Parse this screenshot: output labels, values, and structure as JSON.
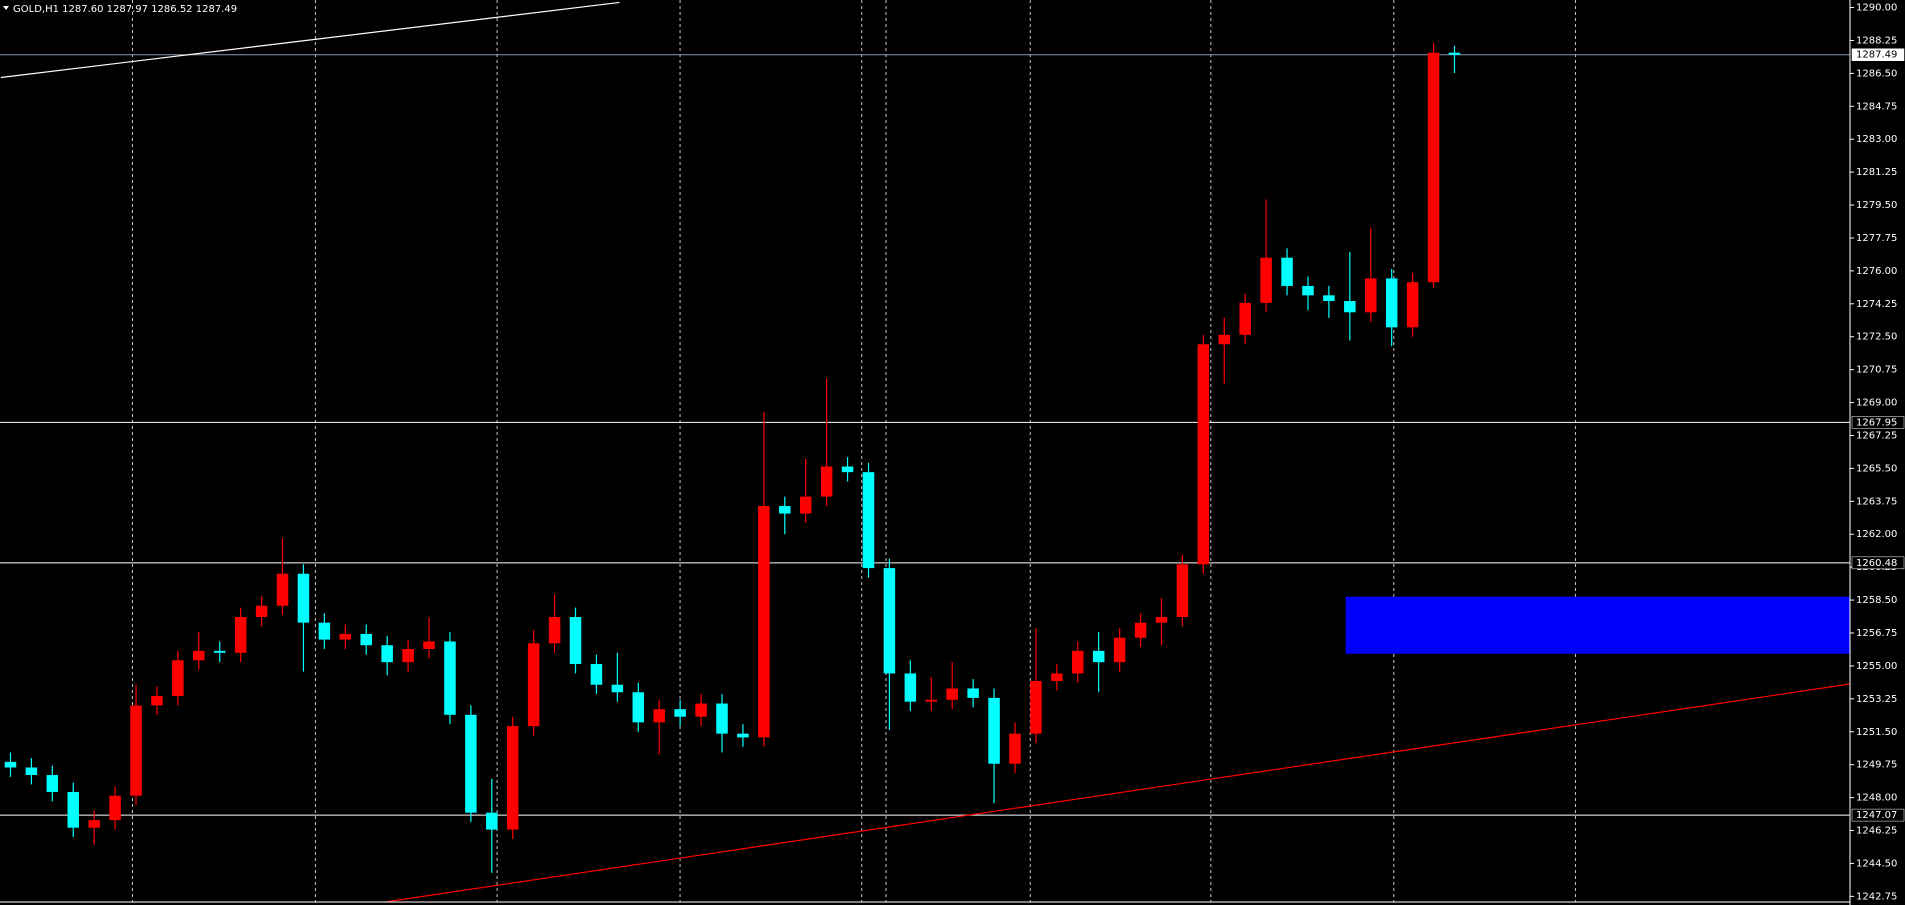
{
  "chart_data": {
    "type": "candlestick",
    "header": "GOLD,H1  1287.60 1287.97 1286.52 1287.49",
    "up_color": "#ff0000",
    "down_color": "#00ffff",
    "open": [
      1249.9,
      1249.6,
      1249.2,
      1248.3,
      1246.4,
      1246.8,
      1248.1,
      1252.9,
      1253.4,
      1255.3,
      1255.8,
      1255.7,
      1257.6,
      1258.2,
      1259.9,
      1257.3,
      1256.4,
      1256.7,
      1256.1,
      1255.2,
      1255.9,
      1256.3,
      1252.4,
      1247.2,
      1246.3,
      1251.8,
      1256.2,
      1257.6,
      1255.1,
      1254.0,
      1253.6,
      1252.0,
      1252.7,
      1252.3,
      1253.0,
      1251.4,
      1251.2,
      1263.5,
      1263.1,
      1264.0,
      1265.6,
      1265.3,
      1260.2,
      1254.6,
      1253.1,
      1253.2,
      1253.8,
      1253.3,
      1249.8,
      1251.4,
      1254.2,
      1254.6,
      1255.8,
      1255.2,
      1256.5,
      1257.3,
      1257.6,
      1260.4,
      1272.1,
      1272.6,
      1274.3,
      1276.7,
      1275.2,
      1274.7,
      1274.4,
      1273.8,
      1275.6,
      1273.0,
      1275.4,
      1287.6
    ],
    "high": [
      1250.4,
      1250.1,
      1249.7,
      1248.8,
      1247.3,
      1248.6,
      1254.0,
      1253.9,
      1255.8,
      1256.8,
      1256.3,
      1258.1,
      1258.7,
      1261.8,
      1260.4,
      1257.8,
      1257.2,
      1257.2,
      1256.6,
      1256.4,
      1257.6,
      1256.8,
      1252.9,
      1249.0,
      1252.3,
      1256.9,
      1258.8,
      1258.1,
      1255.6,
      1255.7,
      1254.1,
      1253.2,
      1253.2,
      1253.5,
      1253.5,
      1251.9,
      1268.5,
      1264.0,
      1266.0,
      1270.3,
      1266.1,
      1265.8,
      1260.7,
      1255.3,
      1254.4,
      1255.2,
      1254.3,
      1253.8,
      1252.0,
      1257.0,
      1255.1,
      1256.3,
      1256.8,
      1257.0,
      1257.8,
      1258.6,
      1260.9,
      1272.6,
      1273.5,
      1274.8,
      1279.8,
      1277.2,
      1275.7,
      1275.2,
      1277.0,
      1278.3,
      1276.1,
      1275.9,
      1288.1,
      1287.97
    ],
    "low": [
      1249.1,
      1248.7,
      1247.8,
      1245.9,
      1245.5,
      1246.3,
      1247.6,
      1252.4,
      1252.9,
      1254.8,
      1255.2,
      1255.2,
      1257.1,
      1257.7,
      1254.7,
      1255.9,
      1255.9,
      1255.6,
      1254.5,
      1254.7,
      1255.4,
      1251.9,
      1246.7,
      1244.0,
      1245.8,
      1251.3,
      1255.7,
      1254.6,
      1253.5,
      1253.1,
      1251.5,
      1250.3,
      1251.8,
      1251.8,
      1250.4,
      1250.7,
      1250.7,
      1262.0,
      1262.6,
      1263.5,
      1264.8,
      1259.7,
      1251.6,
      1252.6,
      1252.6,
      1252.7,
      1252.8,
      1247.7,
      1249.3,
      1250.9,
      1253.7,
      1254.1,
      1253.6,
      1254.7,
      1256.0,
      1256.1,
      1257.1,
      1259.9,
      1270.0,
      1272.1,
      1273.8,
      1274.7,
      1273.9,
      1273.5,
      1272.3,
      1273.3,
      1272.0,
      1272.5,
      1275.1,
      1286.52
    ],
    "close": [
      1249.6,
      1249.2,
      1248.3,
      1246.4,
      1246.8,
      1248.1,
      1252.9,
      1253.4,
      1255.3,
      1255.8,
      1255.7,
      1257.6,
      1258.2,
      1259.9,
      1257.3,
      1256.4,
      1256.7,
      1256.1,
      1255.2,
      1255.9,
      1256.3,
      1252.4,
      1247.2,
      1246.3,
      1251.8,
      1256.2,
      1257.6,
      1255.1,
      1254.0,
      1253.6,
      1252.0,
      1252.7,
      1252.3,
      1253.0,
      1251.4,
      1251.2,
      1263.5,
      1263.1,
      1264.0,
      1265.6,
      1265.3,
      1260.2,
      1254.6,
      1253.1,
      1253.2,
      1253.8,
      1253.3,
      1249.8,
      1251.4,
      1254.2,
      1254.6,
      1255.8,
      1255.2,
      1256.5,
      1257.3,
      1257.6,
      1260.4,
      1272.1,
      1272.6,
      1274.3,
      1276.7,
      1275.2,
      1274.7,
      1274.4,
      1273.8,
      1275.6,
      1273.0,
      1275.4,
      1287.6,
      1287.49
    ],
    "xlim": [
      -0.5,
      87.9
    ],
    "ylim": [
      1242.45,
      1290.4
    ],
    "yticks": [
      {
        "value": 1290,
        "label": "1290.00"
      },
      {
        "value": 1288.25,
        "label": "1288.25"
      },
      {
        "value": 1286.5,
        "label": "1286.50"
      },
      {
        "value": 1284.75,
        "label": "1284.75"
      },
      {
        "value": 1283,
        "label": "1283.00"
      },
      {
        "value": 1281.25,
        "label": "1281.25"
      },
      {
        "value": 1279.5,
        "label": "1279.50"
      },
      {
        "value": 1277.75,
        "label": "1277.75"
      },
      {
        "value": 1276,
        "label": "1276.00"
      },
      {
        "value": 1274.25,
        "label": "1274.25"
      },
      {
        "value": 1272.5,
        "label": "1272.50"
      },
      {
        "value": 1270.75,
        "label": "1270.75"
      },
      {
        "value": 1269,
        "label": "1269.00"
      },
      {
        "value": 1267.25,
        "label": "1267.25"
      },
      {
        "value": 1265.5,
        "label": "1265.50"
      },
      {
        "value": 1263.75,
        "label": "1263.75"
      },
      {
        "value": 1262,
        "label": "1262.00"
      },
      {
        "value": 1260.25,
        "label": "1260.25"
      },
      {
        "value": 1258.5,
        "label": "1258.50"
      },
      {
        "value": 1256.75,
        "label": "1256.75"
      },
      {
        "value": 1255,
        "label": "1255.00"
      },
      {
        "value": 1253.25,
        "label": "1253.25"
      },
      {
        "value": 1251.5,
        "label": "1251.50"
      },
      {
        "value": 1249.75,
        "label": "1249.75"
      },
      {
        "value": 1248,
        "label": "1248.00"
      },
      {
        "value": 1246.25,
        "label": "1246.25"
      },
      {
        "value": 1244.5,
        "label": "1244.50"
      },
      {
        "value": 1242.75,
        "label": "1242.75"
      }
    ],
    "levels": [
      1287.49,
      1267.95,
      1260.48,
      1247.07
    ],
    "trendlines": [
      {
        "x": [
          -0.46,
          29.1
        ],
        "y": [
          1286.28,
          1290.27
        ],
        "color": "#ffffff"
      },
      {
        "x": [
          17.9,
          87.9
        ],
        "y": [
          1242.45,
          1254.04
        ],
        "color": "#ff0000"
      }
    ],
    "zone": {
      "x": [
        63.8,
        87.9
      ],
      "y": [
        1255.65,
        1258.68
      ],
      "color": "#0000ff"
    },
    "grid": true
  }
}
